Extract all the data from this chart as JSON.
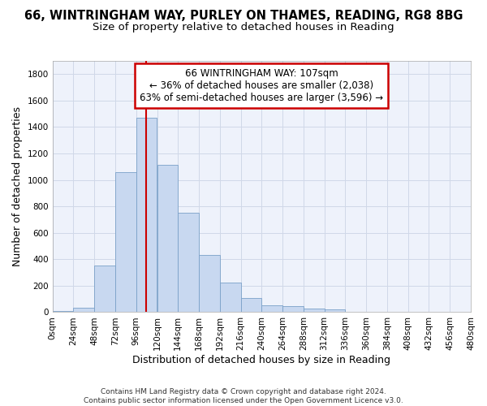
{
  "title_line1": "66, WINTRINGHAM WAY, PURLEY ON THAMES, READING, RG8 8BG",
  "title_line2": "Size of property relative to detached houses in Reading",
  "xlabel": "Distribution of detached houses by size in Reading",
  "ylabel": "Number of detached properties",
  "bin_edges": [
    0,
    24,
    48,
    72,
    96,
    120,
    144,
    168,
    192,
    216,
    240,
    264,
    288,
    312,
    336,
    360,
    384,
    408,
    432,
    456,
    480
  ],
  "bar_heights": [
    10,
    35,
    355,
    1060,
    1470,
    1115,
    750,
    435,
    225,
    110,
    50,
    45,
    30,
    20,
    5,
    5,
    5,
    2,
    2,
    2
  ],
  "bar_color": "#c8d8f0",
  "bar_edge_color": "#7aa0c8",
  "vline_x": 107,
  "vline_color": "#cc0000",
  "annotation_line1": "66 WINTRINGHAM WAY: 107sqm",
  "annotation_line2": "← 36% of detached houses are smaller (2,038)",
  "annotation_line3": "63% of semi-detached houses are larger (3,596) →",
  "annotation_box_edgecolor": "#cc0000",
  "annotation_box_facecolor": "#ffffff",
  "tick_labels": [
    "0sqm",
    "24sqm",
    "48sqm",
    "72sqm",
    "96sqm",
    "120sqm",
    "144sqm",
    "168sqm",
    "192sqm",
    "216sqm",
    "240sqm",
    "264sqm",
    "288sqm",
    "312sqm",
    "336sqm",
    "360sqm",
    "384sqm",
    "408sqm",
    "432sqm",
    "456sqm",
    "480sqm"
  ],
  "yticks": [
    0,
    200,
    400,
    600,
    800,
    1000,
    1200,
    1400,
    1600,
    1800
  ],
  "ylim": [
    0,
    1900
  ],
  "grid_color": "#d0d8e8",
  "background_color": "#eef2fb",
  "footer_text": "Contains HM Land Registry data © Crown copyright and database right 2024.\nContains public sector information licensed under the Open Government Licence v3.0.",
  "title_fontsize": 10.5,
  "subtitle_fontsize": 9.5,
  "axis_label_fontsize": 9,
  "tick_fontsize": 7.5,
  "annotation_fontsize": 8.5,
  "footer_fontsize": 6.5
}
